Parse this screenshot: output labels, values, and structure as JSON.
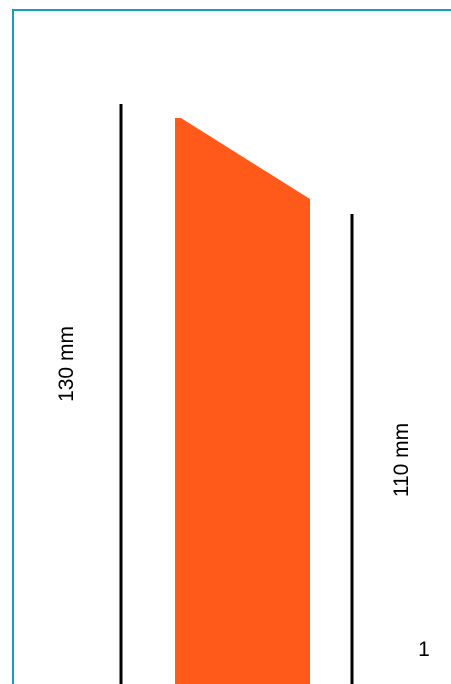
{
  "diagram": {
    "dimensions": {
      "left_height_label": "130 mm",
      "right_height_label": "110 mm"
    },
    "panel_number": "1",
    "colors": {
      "frame": "#1a9bbf",
      "shape_fill": "#ff5a1a",
      "dimension_line": "#000000"
    }
  }
}
